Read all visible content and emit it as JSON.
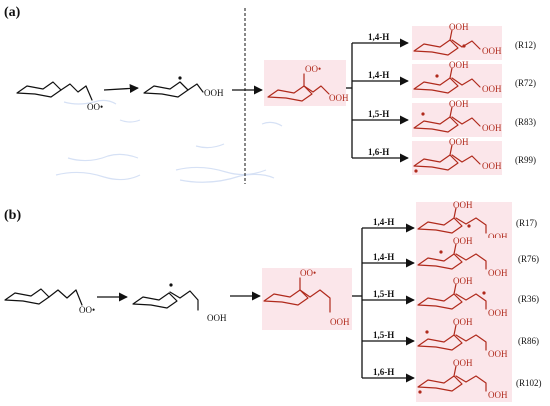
{
  "panels": {
    "a": {
      "label": "(a)"
    },
    "b": {
      "label": "(b)"
    }
  },
  "groups": {
    "peroxy_radical": "OO•",
    "hydroperoxide": "OOH",
    "radical_dot": "•"
  },
  "panel_a": {
    "steps": [
      "1,4-H",
      "1,4-H",
      "1,5-H",
      "1,6-H"
    ],
    "reactions": [
      "(R12)",
      "(R72)",
      "(R83)",
      "(R99)"
    ]
  },
  "panel_b": {
    "steps": [
      "1,4-H",
      "1,4-H",
      "1,5-H",
      "1,5-H",
      "1,6-H"
    ],
    "reactions": [
      "(R17)",
      "(R76)",
      "(R36)",
      "(R86)",
      "(R102)"
    ]
  },
  "colors": {
    "product_red": "#b02a1c",
    "highlight_pink": "#fbe6ea",
    "ink": "#111111"
  }
}
